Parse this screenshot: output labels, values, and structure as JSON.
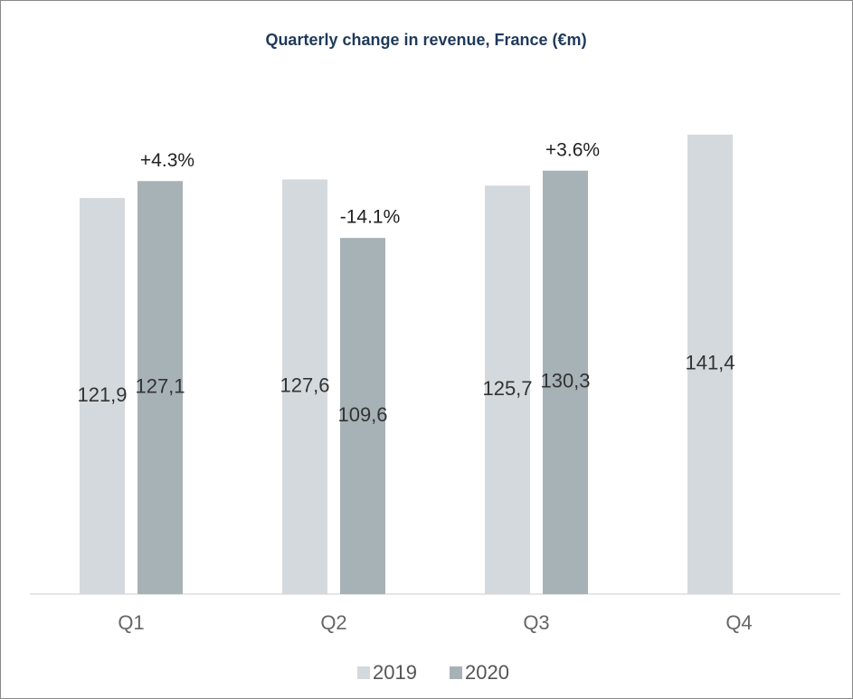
{
  "chart_data": {
    "type": "bar",
    "title": "Quarterly change in revenue, France (€m)",
    "categories": [
      "Q1",
      "Q2",
      "Q3",
      "Q4"
    ],
    "series": [
      {
        "name": "2019",
        "color": "#d4d9dd",
        "values": [
          121.9,
          127.6,
          125.7,
          141.4
        ],
        "value_labels": [
          "121,9",
          "127,6",
          "125,7",
          "141,4"
        ]
      },
      {
        "name": "2020",
        "color": "#a7b2b7",
        "values": [
          127.1,
          109.6,
          130.3,
          null
        ],
        "value_labels": [
          "127,1",
          "109,6",
          "130,3",
          null
        ]
      }
    ],
    "change_labels": [
      "+4.3%",
      "-14.1%",
      "+3.6%",
      null
    ],
    "ylim": [
      0,
      160
    ],
    "legend": "bottom"
  }
}
